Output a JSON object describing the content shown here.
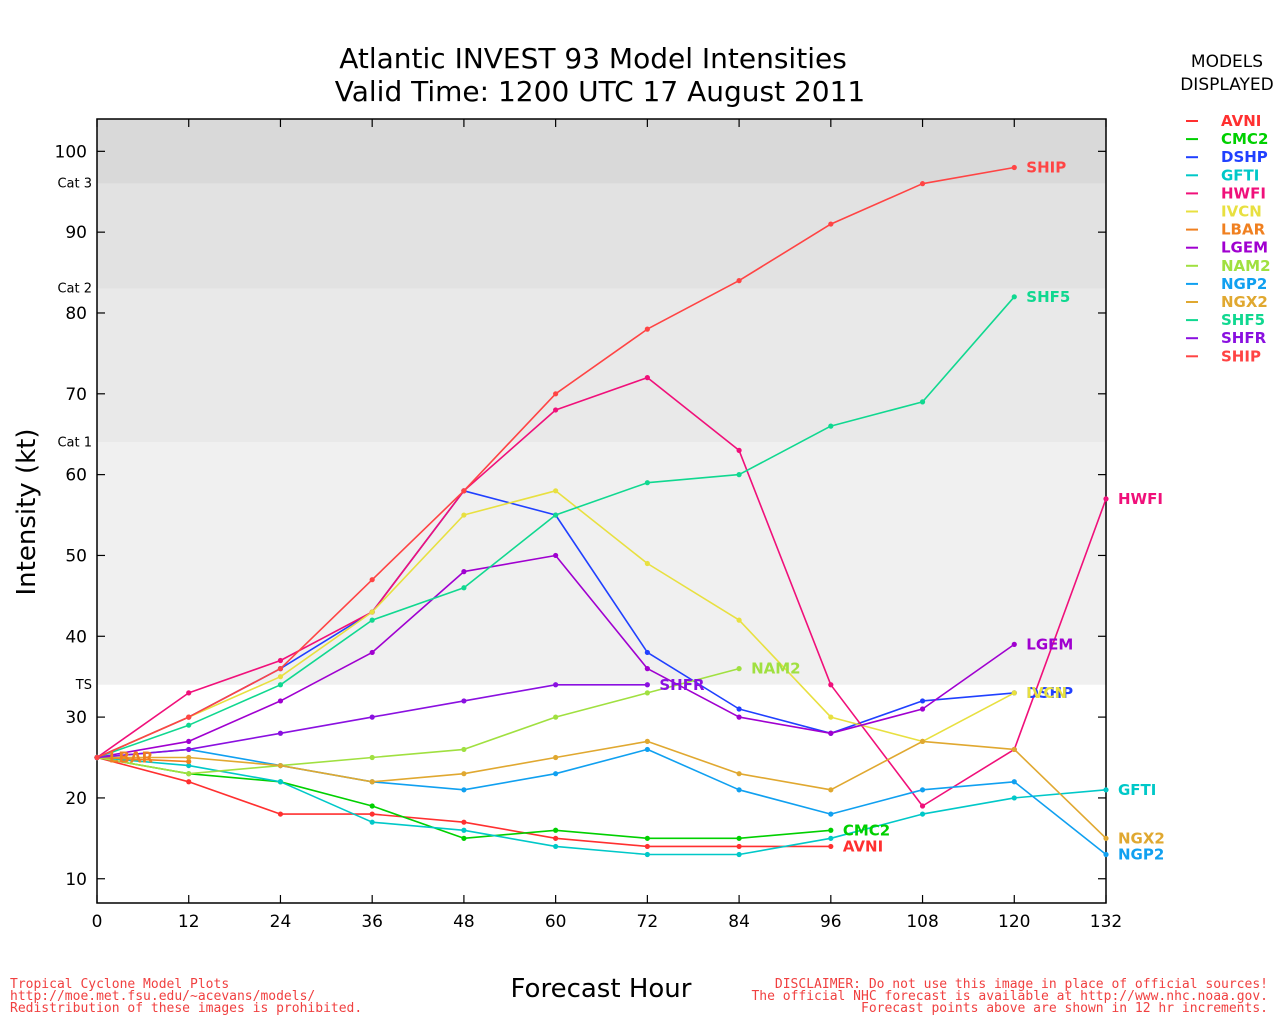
{
  "chart_data": {
    "type": "line",
    "title": [
      "Atlantic INVEST 93 Model Intensities",
      "Valid Time: 1200 UTC 17 August 2011"
    ],
    "xlabel": "Forecast Hour",
    "ylabel": "Intensity (kt)",
    "xlim": [
      0,
      132
    ],
    "ylim": [
      7,
      104
    ],
    "xticks": [
      0,
      12,
      24,
      36,
      48,
      60,
      72,
      84,
      96,
      108,
      120,
      132
    ],
    "yticks": [
      10,
      20,
      30,
      40,
      50,
      60,
      70,
      80,
      90,
      100
    ],
    "bands": [
      {
        "label": "TS",
        "from": 34,
        "to": 64,
        "color": "#f0f0f0"
      },
      {
        "label": "Cat 1",
        "from": 64,
        "to": 83,
        "color": "#e9e9e9"
      },
      {
        "label": "Cat 2",
        "from": 83,
        "to": 96,
        "color": "#e2e2e2"
      },
      {
        "label": "Cat 3",
        "from": 96,
        "to": 104,
        "color": "#d9d9d9"
      }
    ],
    "legend_title": [
      "MODELS",
      "DISPLAYED"
    ],
    "legend_position": "right",
    "series": [
      {
        "name": "AVNI",
        "color": "#ff3030",
        "x": [
          0,
          12,
          24,
          36,
          48,
          60,
          72,
          84,
          96
        ],
        "y": [
          25,
          22,
          18,
          18,
          17,
          15,
          14,
          14,
          14
        ],
        "label_x": 96,
        "label_y": 14
      },
      {
        "name": "CMC2",
        "color": "#00d000",
        "x": [
          0,
          12,
          24,
          36,
          48,
          60,
          72,
          84,
          96
        ],
        "y": [
          25,
          23,
          22,
          19,
          15,
          16,
          15,
          15,
          16
        ],
        "label_x": 96,
        "label_y": 16
      },
      {
        "name": "DSHP",
        "color": "#2040ff",
        "x": [
          0,
          12,
          24,
          36,
          48,
          60,
          72,
          84,
          96,
          108,
          120
        ],
        "y": [
          25,
          30,
          36,
          43,
          58,
          55,
          38,
          31,
          28,
          32,
          33
        ],
        "label_x": 120,
        "label_y": 33
      },
      {
        "name": "GFTI",
        "color": "#00c8c8",
        "x": [
          0,
          12,
          24,
          36,
          48,
          60,
          72,
          84,
          96,
          108,
          120,
          132
        ],
        "y": [
          25,
          24,
          22,
          17,
          16,
          14,
          13,
          13,
          15,
          18,
          20,
          21
        ],
        "label_x": 132,
        "label_y": 21
      },
      {
        "name": "HWFI",
        "color": "#f0107a",
        "x": [
          0,
          12,
          24,
          36,
          48,
          60,
          72,
          84,
          96,
          108,
          120,
          132
        ],
        "y": [
          25,
          33,
          37,
          43,
          58,
          68,
          72,
          63,
          34,
          19,
          26,
          57
        ],
        "label_x": 132,
        "label_y": 57
      },
      {
        "name": "IVCN",
        "color": "#e8e040",
        "x": [
          0,
          12,
          24,
          36,
          48,
          60,
          72,
          84,
          96,
          108,
          120
        ],
        "y": [
          25,
          30,
          35,
          43,
          55,
          58,
          49,
          42,
          30,
          27,
          33
        ],
        "label_x": 120,
        "label_y": 33
      },
      {
        "name": "LBAR",
        "color": "#f08020",
        "x": [
          0,
          12
        ],
        "y": [
          25,
          24.5
        ],
        "label_x": 0,
        "label_y": 25
      },
      {
        "name": "LGEM",
        "color": "#a000d0",
        "x": [
          0,
          12,
          24,
          36,
          48,
          60,
          72,
          84,
          96,
          108,
          120
        ],
        "y": [
          25,
          27,
          32,
          38,
          48,
          50,
          36,
          30,
          28,
          31,
          39
        ],
        "label_x": 120,
        "label_y": 39
      },
      {
        "name": "NAM2",
        "color": "#a0e040",
        "x": [
          0,
          12,
          24,
          36,
          48,
          60,
          72,
          84
        ],
        "y": [
          25,
          23,
          24,
          25,
          26,
          30,
          33,
          36
        ],
        "label_x": 84,
        "label_y": 36
      },
      {
        "name": "NGP2",
        "color": "#10a0f0",
        "x": [
          0,
          12,
          24,
          36,
          48,
          60,
          72,
          84,
          96,
          108,
          120,
          132
        ],
        "y": [
          25,
          26,
          24,
          22,
          21,
          23,
          26,
          21,
          18,
          21,
          22,
          13
        ],
        "label_x": 132,
        "label_y": 13
      },
      {
        "name": "NGX2",
        "color": "#e0a830",
        "x": [
          0,
          12,
          24,
          36,
          48,
          60,
          72,
          84,
          96,
          108,
          120,
          132
        ],
        "y": [
          25,
          25,
          24,
          22,
          23,
          25,
          27,
          23,
          21,
          27,
          26,
          15
        ],
        "label_x": 132,
        "label_y": 15
      },
      {
        "name": "SHF5",
        "color": "#10d890",
        "x": [
          0,
          12,
          24,
          36,
          48,
          60,
          72,
          84,
          96,
          108,
          120
        ],
        "y": [
          25,
          29,
          34,
          42,
          46,
          55,
          59,
          60,
          66,
          69,
          82
        ],
        "label_x": 120,
        "label_y": 82
      },
      {
        "name": "SHFR",
        "color": "#8a10e0",
        "x": [
          0,
          12,
          24,
          36,
          48,
          60,
          72
        ],
        "y": [
          25,
          26,
          28,
          30,
          32,
          34,
          34
        ],
        "label_x": 72,
        "label_y": 34
      },
      {
        "name": "SHIP",
        "color": "#ff4444",
        "x": [
          0,
          12,
          24,
          36,
          48,
          60,
          72,
          84,
          96,
          108,
          120
        ],
        "y": [
          25,
          30,
          36,
          47,
          58,
          70,
          78,
          84,
          91,
          96,
          98
        ],
        "label_x": 120,
        "label_y": 98
      }
    ]
  },
  "footer": {
    "left": [
      "Tropical Cyclone Model Plots",
      "http://moe.met.fsu.edu/~acevans/models/",
      "Redistribution of these images is prohibited."
    ],
    "right": [
      "DISCLAIMER: Do not use this image in place of official sources!",
      "The official NHC forecast is available at http://www.nhc.noaa.gov.",
      "Forecast points above are shown in 12 hr increments."
    ]
  }
}
